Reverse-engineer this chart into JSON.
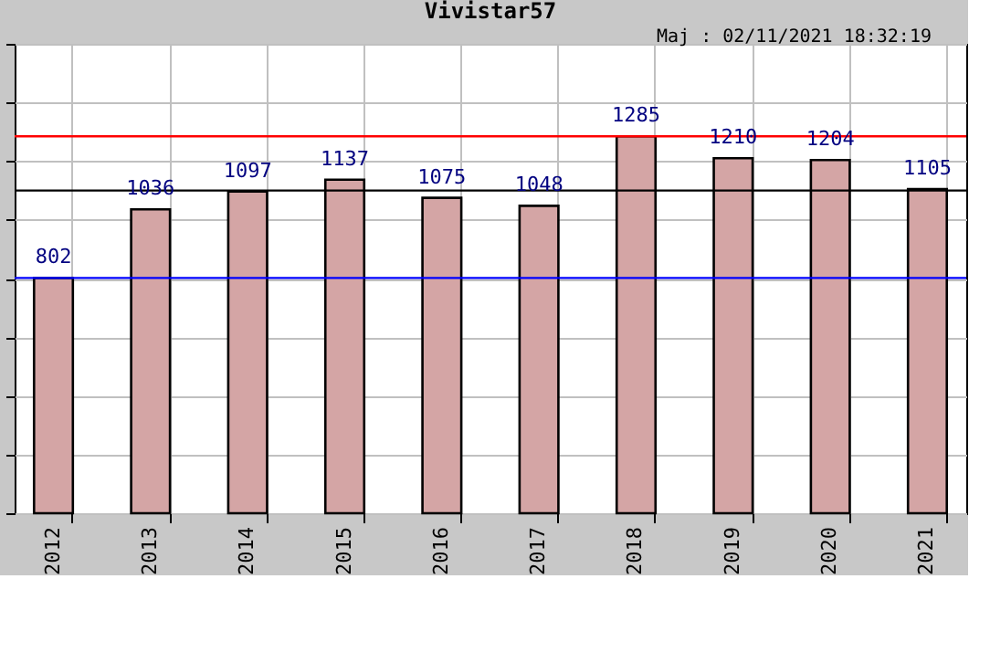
{
  "chart_data": {
    "type": "bar",
    "title": "Vivistar57",
    "categories": [
      "2012",
      "2013",
      "2014",
      "2015",
      "2016",
      "2017",
      "2018",
      "2019",
      "2020",
      "2021"
    ],
    "series": [
      {
        "color": "#d4a5a5",
        "values": [
          802,
          1036,
          1097,
          1137,
          1075,
          1048,
          1285,
          1210,
          1204,
          1105
        ]
      }
    ],
    "ylim": [
      0,
      1600
    ],
    "tick_labels": "x",
    "grid": true,
    "data_labels": true,
    "ref_lines": [
      {
        "axis": "y",
        "value": 802,
        "color": "#0000ff"
      },
      {
        "axis": "y",
        "value": 1100,
        "color": "#000000"
      },
      {
        "axis": "y",
        "value": 1285,
        "color": "#ff0000"
      }
    ],
    "annotations": [
      "Maj : 02/11/2021 18:32:19"
    ]
  }
}
